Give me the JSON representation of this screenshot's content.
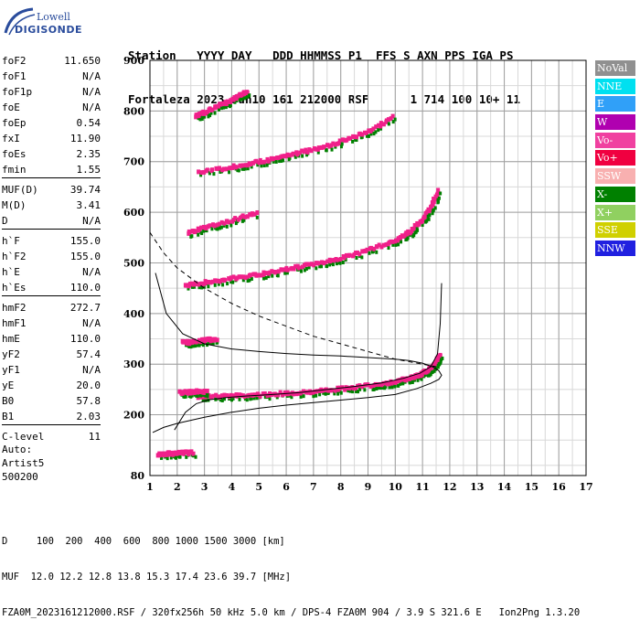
{
  "logo": {
    "line1": "Lowell",
    "line2": "DIGISONDE"
  },
  "header": {
    "labels": [
      "Station",
      "YYYY DAY",
      "DDD HHMMSS P1",
      "FFS S AXN PPS IGA PS"
    ],
    "values": [
      "Fortaleza",
      "2023 Jun10",
      "161 212000 RSF",
      "1 714 100 10+ 11"
    ]
  },
  "parameters": [
    [
      {
        "k": "foF2",
        "v": "11.650"
      },
      {
        "k": "foF1",
        "v": "N/A"
      },
      {
        "k": "foF1p",
        "v": "N/A"
      },
      {
        "k": "foE",
        "v": "N/A"
      },
      {
        "k": "foEp",
        "v": "0.54"
      },
      {
        "k": "fxI",
        "v": "11.90"
      },
      {
        "k": "foEs",
        "v": "2.35"
      },
      {
        "k": "fmin",
        "v": "1.55"
      }
    ],
    [
      {
        "k": "MUF(D)",
        "v": "39.74"
      },
      {
        "k": "M(D)",
        "v": "3.41"
      },
      {
        "k": "D",
        "v": "N/A"
      }
    ],
    [
      {
        "k": "h`F",
        "v": "155.0"
      },
      {
        "k": "h`F2",
        "v": "155.0"
      },
      {
        "k": "h`E",
        "v": "N/A"
      },
      {
        "k": "h`Es",
        "v": "110.0"
      }
    ],
    [
      {
        "k": "hmF2",
        "v": "272.7"
      },
      {
        "k": "hmF1",
        "v": "N/A"
      },
      {
        "k": "hmE",
        "v": "110.0"
      },
      {
        "k": "yF2",
        "v": "57.4"
      },
      {
        "k": "yF1",
        "v": "N/A"
      },
      {
        "k": "yE",
        "v": "20.0"
      },
      {
        "k": "B0",
        "v": "57.8"
      },
      {
        "k": "B1",
        "v": "2.03"
      }
    ],
    [
      {
        "k": "C-level",
        "v": "11"
      }
    ]
  ],
  "auto": {
    "line1": "Auto:",
    "line2": "Artist5",
    "line3": "500200"
  },
  "legend": [
    {
      "label": "NoVal",
      "color": "#909090"
    },
    {
      "label": "NNE",
      "color": "#00e0f0"
    },
    {
      "label": "E",
      "color": "#30a0f8"
    },
    {
      "label": "W",
      "color": "#b000b0"
    },
    {
      "label": "Vo-",
      "color": "#f040a0"
    },
    {
      "label": "Vo+",
      "color": "#f00040"
    },
    {
      "label": "SSW",
      "color": "#f8b0b0"
    },
    {
      "label": "X-",
      "color": "#008000"
    },
    {
      "label": "X+",
      "color": "#90d060"
    },
    {
      "label": "SSE",
      "color": "#d0d000"
    },
    {
      "label": "NNW",
      "color": "#2020e0"
    }
  ],
  "footer": {
    "d_line": "D     100  200  400  600  800 1000 1500 3000 [km]",
    "muf_line": "MUF  12.0 12.2 12.8 13.8 15.3 17.4 23.6 39.7 [MHz]",
    "file_line": "FZA0M_2023161212000.RSF / 320fx256h 50 kHz 5.0 km / DPS-4 FZA0M 904 / 3.9 S 321.6 E   Ion2Png 1.3.20"
  },
  "chart_data": {
    "type": "scatter",
    "xlim": [
      1,
      17
    ],
    "ylim": [
      80,
      900
    ],
    "x_ticks": [
      1,
      2,
      3,
      4,
      5,
      6,
      7,
      8,
      9,
      10,
      11,
      12,
      13,
      14,
      15,
      16,
      17
    ],
    "y_ticks": [
      80,
      200,
      300,
      400,
      500,
      600,
      700,
      800,
      900
    ],
    "grid": true,
    "xlabel": "",
    "ylabel": "",
    "trace_o_color": "#f0208a",
    "trace_x_color": "#008000",
    "series": [
      {
        "type": "trace",
        "x": [
          2.8,
          4,
          5,
          6,
          7,
          8,
          9,
          10,
          10.5,
          11,
          11.3,
          11.5,
          11.65
        ],
        "y": [
          237,
          238,
          240,
          243,
          247,
          252,
          258,
          266,
          272,
          282,
          292,
          305,
          320
        ]
      },
      {
        "type": "trace",
        "x": [
          2.3,
          3,
          4,
          5,
          6,
          7,
          8,
          9,
          10,
          10.5,
          11,
          11.3,
          11.6
        ],
        "y": [
          455,
          462,
          470,
          478,
          488,
          498,
          510,
          525,
          545,
          560,
          585,
          610,
          645
        ]
      },
      {
        "type": "trace",
        "x": [
          2.8,
          4,
          5,
          6,
          7,
          8,
          9,
          10
        ],
        "y": [
          680,
          690,
          700,
          712,
          725,
          740,
          760,
          790
        ]
      },
      {
        "type": "trace",
        "x": [
          2.4,
          3,
          4,
          5
        ],
        "y": [
          560,
          570,
          585,
          600
        ]
      },
      {
        "type": "trace",
        "x": [
          2.7,
          3,
          3.5,
          4,
          4.3,
          4.6
        ],
        "y": [
          790,
          798,
          810,
          822,
          832,
          840
        ]
      },
      {
        "type": "trace",
        "x": [
          2.2,
          2.5,
          3,
          3.5
        ],
        "y": [
          345,
          343,
          348,
          350
        ]
      },
      {
        "type": "trace",
        "x": [
          2.1,
          2.5,
          2.8,
          3.1
        ],
        "y": [
          245,
          245,
          248,
          246
        ]
      },
      {
        "type": "trace",
        "x": [
          1.3,
          1.7,
          2.1,
          2.6
        ],
        "y": [
          123,
          124,
          125,
          126
        ]
      },
      {
        "type": "curve",
        "name": "",
        "style": "solid",
        "x": [
          1.1,
          1.5,
          2,
          3,
          4,
          5,
          6,
          7,
          8,
          9,
          10,
          10.8,
          11.3,
          11.6,
          11.7,
          11.6,
          11.4,
          11.0,
          10.5,
          10.0,
          9.0,
          8.0,
          7.0,
          6.0,
          5.0,
          4.0,
          3.0,
          2.2,
          1.6,
          1.2
        ],
        "y": [
          165,
          175,
          183,
          195,
          205,
          213,
          219,
          224,
          229,
          234,
          240,
          252,
          262,
          270,
          278,
          287,
          294,
          302,
          307,
          310,
          313,
          316,
          318,
          321,
          325,
          330,
          340,
          360,
          400,
          480
        ]
      },
      {
        "type": "curve",
        "name": "",
        "style": "dashed",
        "x": [
          1,
          1.5,
          2,
          3,
          4,
          5,
          6,
          7,
          8,
          9,
          10,
          11,
          11.5
        ],
        "y": [
          560,
          520,
          490,
          450,
          420,
          395,
          375,
          355,
          340,
          325,
          310,
          300,
          295
        ]
      },
      {
        "type": "curve",
        "name": "",
        "style": "solid",
        "x": [
          1.9,
          2.3,
          2.7,
          3.2,
          3.8,
          4.5,
          5.5,
          6.5,
          7.5,
          8.5,
          9.5,
          10.3,
          10.9,
          11.3,
          11.55,
          11.65,
          11.7
        ],
        "y": [
          170,
          205,
          222,
          230,
          234,
          237,
          240,
          244,
          250,
          256,
          263,
          272,
          282,
          295,
          320,
          380,
          460
        ]
      }
    ]
  }
}
